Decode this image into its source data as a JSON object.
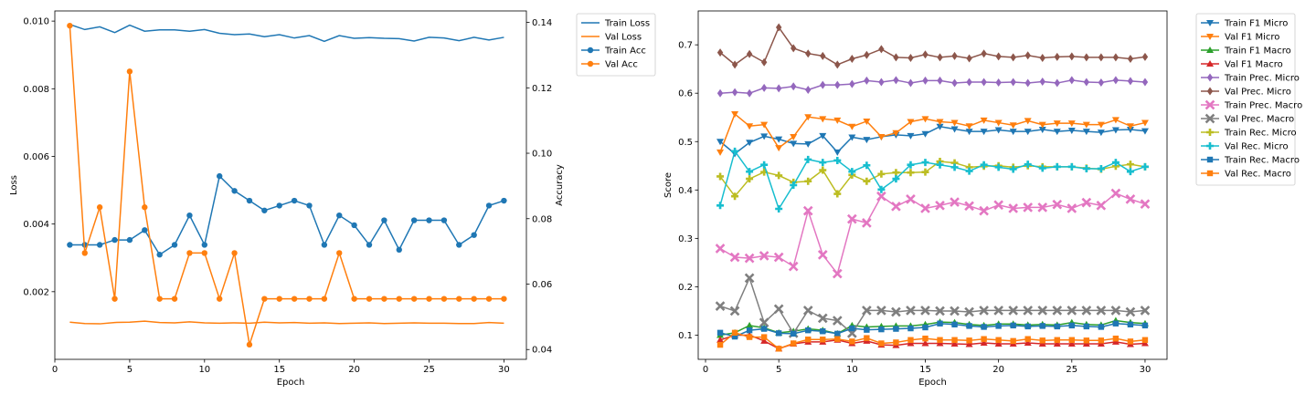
{
  "chart_data": [
    {
      "type": "line",
      "xlabel": "Epoch",
      "ylabel": "Loss",
      "y2label": "Accuracy",
      "xlim": [
        0,
        31.5
      ],
      "ylim": [
        0,
        0.0103
      ],
      "y2lim": [
        0.037,
        0.1435
      ],
      "xticks": [
        0,
        5,
        10,
        15,
        20,
        25,
        30
      ],
      "yticks": [
        0.002,
        0.004,
        0.006,
        0.008,
        0.01
      ],
      "ytick_labels": [
        "0.002",
        "0.004",
        "0.006",
        "0.008",
        "0.010"
      ],
      "y2ticks": [
        0.04,
        0.06,
        0.08,
        0.1,
        0.12,
        0.14
      ],
      "y2tick_labels": [
        "0.04",
        "0.06",
        "0.08",
        "0.10",
        "0.12",
        "0.14"
      ],
      "legend_position": "outside top-right",
      "grid": false,
      "x": [
        1,
        2,
        3,
        4,
        5,
        6,
        7,
        8,
        9,
        10,
        11,
        12,
        13,
        14,
        15,
        16,
        17,
        18,
        19,
        20,
        21,
        22,
        23,
        24,
        25,
        26,
        27,
        28,
        29,
        30
      ],
      "series": [
        {
          "name": "Train Loss",
          "axis": "left",
          "color": "#1f77b4",
          "marker": "none",
          "values": [
            0.0099,
            0.00975,
            0.00983,
            0.00966,
            0.00988,
            0.0097,
            0.00974,
            0.00974,
            0.0097,
            0.00975,
            0.00964,
            0.0096,
            0.00962,
            0.00954,
            0.0096,
            0.0095,
            0.00957,
            0.0094,
            0.00957,
            0.00949,
            0.00951,
            0.00949,
            0.00948,
            0.00941,
            0.00952,
            0.0095,
            0.00942,
            0.00952,
            0.00944,
            0.00952
          ]
        },
        {
          "name": "Val Loss",
          "axis": "left",
          "color": "#ff7f0e",
          "marker": "none",
          "values": [
            0.0011,
            0.00106,
            0.00105,
            0.00109,
            0.0011,
            0.00113,
            0.00109,
            0.00108,
            0.00111,
            0.00108,
            0.00107,
            0.00108,
            0.00107,
            0.0011,
            0.00108,
            0.00109,
            0.00107,
            0.00108,
            0.00106,
            0.00107,
            0.00108,
            0.00106,
            0.00107,
            0.00108,
            0.00107,
            0.00107,
            0.00106,
            0.00106,
            0.00109,
            0.00107
          ]
        },
        {
          "name": "Train Acc",
          "axis": "right",
          "color": "#1f77b4",
          "marker": "circle",
          "values": [
            0.072,
            0.072,
            0.072,
            0.0735,
            0.0735,
            0.0765,
            0.069,
            0.072,
            0.081,
            0.072,
            0.093,
            0.0885,
            0.0855,
            0.0825,
            0.084,
            0.0855,
            0.084,
            0.072,
            0.081,
            0.078,
            0.072,
            0.0795,
            0.0705,
            0.0795,
            0.0795,
            0.0795,
            0.072,
            0.075,
            0.084,
            0.0855
          ]
        },
        {
          "name": "Val Acc",
          "axis": "right",
          "color": "#ff7f0e",
          "marker": "circle",
          "values": [
            0.139,
            0.0695,
            0.0835,
            0.0555,
            0.125,
            0.0835,
            0.0555,
            0.0555,
            0.0695,
            0.0695,
            0.0555,
            0.0695,
            0.0415,
            0.0555,
            0.0555,
            0.0555,
            0.0555,
            0.0555,
            0.0695,
            0.0555,
            0.0555,
            0.0555,
            0.0555,
            0.0555,
            0.0555,
            0.0555,
            0.0555,
            0.0555,
            0.0555,
            0.0555
          ]
        }
      ]
    },
    {
      "type": "line",
      "xlabel": "Epoch",
      "ylabel": "Score",
      "xlim": [
        -0.5,
        31.5
      ],
      "ylim": [
        0.05,
        0.77
      ],
      "xticks": [
        0,
        5,
        10,
        15,
        20,
        25,
        30
      ],
      "yticks": [
        0.1,
        0.2,
        0.3,
        0.4,
        0.5,
        0.6,
        0.7
      ],
      "ytick_labels": [
        "0.1",
        "0.2",
        "0.3",
        "0.4",
        "0.5",
        "0.6",
        "0.7"
      ],
      "legend_position": "outside top-right",
      "grid": false,
      "x": [
        1,
        2,
        3,
        4,
        5,
        6,
        7,
        8,
        9,
        10,
        11,
        12,
        13,
        14,
        15,
        16,
        17,
        18,
        19,
        20,
        21,
        22,
        23,
        24,
        25,
        26,
        27,
        28,
        29,
        30
      ],
      "series": [
        {
          "name": "Train F1 Micro",
          "color": "#1f77b4",
          "marker": "tri-down",
          "values": [
            0.5,
            0.475,
            0.498,
            0.511,
            0.505,
            0.496,
            0.495,
            0.512,
            0.478,
            0.509,
            0.504,
            0.51,
            0.514,
            0.512,
            0.516,
            0.531,
            0.526,
            0.521,
            0.521,
            0.524,
            0.521,
            0.521,
            0.525,
            0.521,
            0.523,
            0.521,
            0.519,
            0.524,
            0.525,
            0.522
          ]
        },
        {
          "name": "Val F1 Micro",
          "color": "#ff7f0e",
          "marker": "tri-down",
          "values": [
            0.478,
            0.557,
            0.532,
            0.535,
            0.487,
            0.51,
            0.551,
            0.547,
            0.544,
            0.531,
            0.542,
            0.51,
            0.518,
            0.541,
            0.547,
            0.541,
            0.539,
            0.532,
            0.544,
            0.539,
            0.534,
            0.543,
            0.535,
            0.538,
            0.538,
            0.535,
            0.535,
            0.545,
            0.532,
            0.539
          ]
        },
        {
          "name": "Train F1 Macro",
          "color": "#2ca02c",
          "marker": "tri-up",
          "values": [
            0.1,
            0.105,
            0.12,
            0.115,
            0.105,
            0.108,
            0.113,
            0.11,
            0.103,
            0.12,
            0.117,
            0.118,
            0.119,
            0.119,
            0.122,
            0.127,
            0.126,
            0.122,
            0.12,
            0.123,
            0.123,
            0.121,
            0.122,
            0.121,
            0.126,
            0.122,
            0.121,
            0.13,
            0.126,
            0.124
          ]
        },
        {
          "name": "Val F1 Macro",
          "color": "#d62728",
          "marker": "tri-up",
          "values": [
            0.09,
            0.1,
            0.1,
            0.088,
            0.072,
            0.082,
            0.086,
            0.086,
            0.09,
            0.083,
            0.088,
            0.08,
            0.079,
            0.083,
            0.083,
            0.083,
            0.082,
            0.081,
            0.084,
            0.082,
            0.082,
            0.084,
            0.082,
            0.082,
            0.082,
            0.082,
            0.082,
            0.086,
            0.081,
            0.083
          ]
        },
        {
          "name": "Train Prec. Micro",
          "color": "#9467bd",
          "marker": "diamond",
          "values": [
            0.6,
            0.602,
            0.6,
            0.611,
            0.61,
            0.614,
            0.607,
            0.617,
            0.617,
            0.619,
            0.626,
            0.623,
            0.627,
            0.621,
            0.626,
            0.626,
            0.621,
            0.623,
            0.623,
            0.622,
            0.623,
            0.621,
            0.624,
            0.621,
            0.627,
            0.623,
            0.622,
            0.627,
            0.625,
            0.623
          ]
        },
        {
          "name": "Val Prec. Micro",
          "color": "#8c564b",
          "marker": "diamond",
          "values": [
            0.684,
            0.659,
            0.681,
            0.664,
            0.736,
            0.693,
            0.682,
            0.677,
            0.659,
            0.671,
            0.679,
            0.691,
            0.674,
            0.673,
            0.68,
            0.674,
            0.677,
            0.672,
            0.682,
            0.676,
            0.674,
            0.678,
            0.673,
            0.675,
            0.676,
            0.674,
            0.674,
            0.674,
            0.671,
            0.675
          ]
        },
        {
          "name": "Train Prec. Macro",
          "color": "#e377c2",
          "marker": "x",
          "values": [
            0.279,
            0.261,
            0.259,
            0.264,
            0.261,
            0.242,
            0.357,
            0.266,
            0.227,
            0.34,
            0.332,
            0.387,
            0.366,
            0.381,
            0.362,
            0.368,
            0.375,
            0.367,
            0.357,
            0.369,
            0.362,
            0.364,
            0.364,
            0.37,
            0.362,
            0.374,
            0.368,
            0.393,
            0.381,
            0.371
          ]
        },
        {
          "name": "Val Prec. Macro",
          "color": "#7f7f7f",
          "marker": "x",
          "values": [
            0.16,
            0.15,
            0.218,
            0.126,
            0.154,
            0.104,
            0.151,
            0.135,
            0.13,
            0.104,
            0.151,
            0.151,
            0.148,
            0.151,
            0.151,
            0.15,
            0.15,
            0.148,
            0.151,
            0.151,
            0.151,
            0.151,
            0.151,
            0.151,
            0.151,
            0.151,
            0.151,
            0.151,
            0.148,
            0.151
          ]
        },
        {
          "name": "Train Rec. Micro",
          "color": "#bcbd22",
          "marker": "plus",
          "values": [
            0.428,
            0.387,
            0.423,
            0.437,
            0.43,
            0.416,
            0.418,
            0.441,
            0.392,
            0.431,
            0.418,
            0.433,
            0.436,
            0.436,
            0.437,
            0.459,
            0.456,
            0.447,
            0.449,
            0.45,
            0.447,
            0.45,
            0.448,
            0.448,
            0.448,
            0.445,
            0.443,
            0.449,
            0.453,
            0.448
          ]
        },
        {
          "name": "Val Rec. Micro",
          "color": "#17becf",
          "marker": "plus",
          "values": [
            0.368,
            0.48,
            0.438,
            0.452,
            0.361,
            0.41,
            0.463,
            0.457,
            0.461,
            0.438,
            0.451,
            0.401,
            0.423,
            0.452,
            0.457,
            0.452,
            0.447,
            0.439,
            0.452,
            0.447,
            0.443,
            0.453,
            0.445,
            0.448,
            0.448,
            0.444,
            0.444,
            0.457,
            0.438,
            0.448
          ]
        },
        {
          "name": "Train Rec. Macro",
          "color": "#1f77b4",
          "marker": "square",
          "values": [
            0.105,
            0.097,
            0.11,
            0.113,
            0.104,
            0.103,
            0.11,
            0.108,
            0.103,
            0.114,
            0.111,
            0.112,
            0.113,
            0.114,
            0.116,
            0.124,
            0.122,
            0.119,
            0.117,
            0.119,
            0.12,
            0.118,
            0.119,
            0.118,
            0.12,
            0.118,
            0.117,
            0.124,
            0.122,
            0.12
          ]
        },
        {
          "name": "Val Rec. Macro",
          "color": "#ff7f0e",
          "marker": "square",
          "values": [
            0.08,
            0.105,
            0.096,
            0.096,
            0.072,
            0.083,
            0.091,
            0.091,
            0.092,
            0.087,
            0.094,
            0.083,
            0.085,
            0.09,
            0.093,
            0.09,
            0.09,
            0.089,
            0.092,
            0.09,
            0.088,
            0.092,
            0.089,
            0.09,
            0.09,
            0.089,
            0.089,
            0.093,
            0.087,
            0.09
          ]
        }
      ]
    }
  ]
}
